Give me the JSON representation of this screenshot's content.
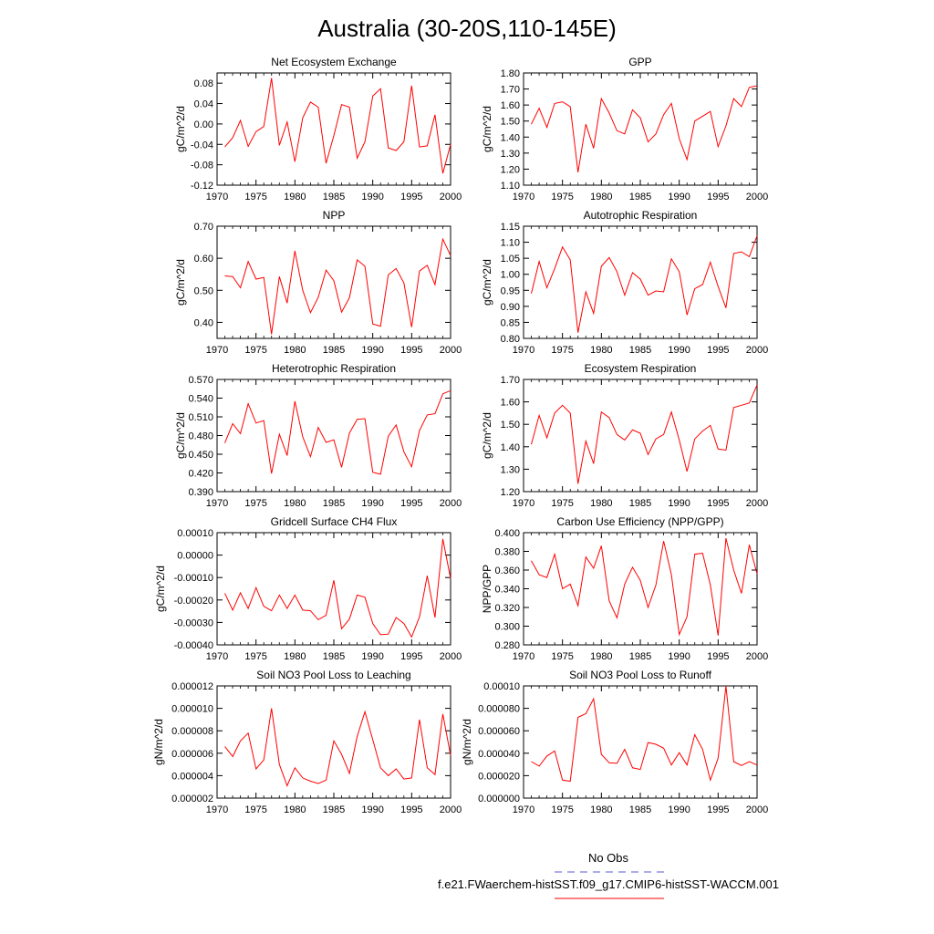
{
  "figure": {
    "title": "Australia (30-20S,110-145E)",
    "legend": [
      {
        "label": "No Obs",
        "color": "#5a5ad6",
        "dash": true
      },
      {
        "label": "f.e21.FWaerchem-histSST.f09_g17.CMIP6-histSST-WACCM.001",
        "color": "#ff0000",
        "dash": false
      }
    ]
  },
  "chart_data": [
    {
      "type": "line",
      "title": "Net Ecosystem Exchange",
      "ylabel": "gC/m^2/d",
      "xlim": [
        1970,
        2000
      ],
      "ylim": [
        -0.12,
        0.1
      ],
      "xticks": [
        "1970",
        "1975",
        "1980",
        "1985",
        "1990",
        "1995",
        "2000"
      ],
      "yticks": [
        "0.08",
        "0.04",
        "0.00",
        "-0.04",
        "-0.08",
        "-0.12"
      ],
      "ytick_values": [
        0.08,
        0.04,
        0.0,
        -0.04,
        -0.08,
        -0.12
      ],
      "x": [
        1971,
        1972,
        1973,
        1974,
        1975,
        1976,
        1977,
        1978,
        1979,
        1980,
        1981,
        1982,
        1983,
        1984,
        1985,
        1986,
        1987,
        1988,
        1989,
        1990,
        1991,
        1992,
        1993,
        1994,
        1995,
        1996,
        1997,
        1998,
        1999,
        2000
      ],
      "y": [
        -0.045,
        -0.027,
        0.007,
        -0.044,
        -0.015,
        -0.005,
        0.09,
        -0.042,
        0.004,
        -0.074,
        0.012,
        0.043,
        0.033,
        -0.077,
        -0.023,
        0.038,
        0.033,
        -0.067,
        -0.035,
        0.055,
        0.069,
        -0.047,
        -0.052,
        -0.035,
        0.075,
        -0.045,
        -0.043,
        0.018,
        -0.097,
        -0.04
      ]
    },
    {
      "type": "line",
      "title": "GPP",
      "ylabel": "gC/m^2/d",
      "xlim": [
        1970,
        2000
      ],
      "ylim": [
        1.1,
        1.8
      ],
      "xticks": [
        "1970",
        "1975",
        "1980",
        "1985",
        "1990",
        "1995",
        "2000"
      ],
      "yticks": [
        "1.80",
        "1.70",
        "1.60",
        "1.50",
        "1.40",
        "1.30",
        "1.20",
        "1.10"
      ],
      "ytick_values": [
        1.8,
        1.7,
        1.6,
        1.5,
        1.4,
        1.3,
        1.2,
        1.1
      ],
      "x": [
        1971,
        1972,
        1973,
        1974,
        1975,
        1976,
        1977,
        1978,
        1979,
        1980,
        1981,
        1982,
        1983,
        1984,
        1985,
        1986,
        1987,
        1988,
        1989,
        1990,
        1991,
        1992,
        1993,
        1994,
        1995,
        1996,
        1997,
        1998,
        1999,
        2000
      ],
      "y": [
        1.48,
        1.58,
        1.46,
        1.61,
        1.62,
        1.59,
        1.18,
        1.48,
        1.33,
        1.64,
        1.55,
        1.44,
        1.42,
        1.57,
        1.52,
        1.37,
        1.42,
        1.54,
        1.61,
        1.39,
        1.26,
        1.5,
        1.53,
        1.56,
        1.34,
        1.47,
        1.64,
        1.59,
        1.71,
        1.72
      ]
    },
    {
      "type": "line",
      "title": "NPP",
      "ylabel": "gC/m^2/d",
      "xlim": [
        1970,
        2000
      ],
      "ylim": [
        0.35,
        0.7
      ],
      "xticks": [
        "1970",
        "1975",
        "1980",
        "1985",
        "1990",
        "1995",
        "2000"
      ],
      "yticks": [
        "0.70",
        "0.60",
        "0.50",
        "0.40"
      ],
      "ytick_values": [
        0.7,
        0.6,
        0.5,
        0.4
      ],
      "x": [
        1971,
        1972,
        1973,
        1974,
        1975,
        1976,
        1977,
        1978,
        1979,
        1980,
        1981,
        1982,
        1983,
        1984,
        1985,
        1986,
        1987,
        1988,
        1989,
        1990,
        1991,
        1992,
        1993,
        1994,
        1995,
        1996,
        1997,
        1998,
        1999,
        2000
      ],
      "y": [
        0.545,
        0.543,
        0.508,
        0.59,
        0.535,
        0.54,
        0.363,
        0.543,
        0.46,
        0.623,
        0.5,
        0.43,
        0.478,
        0.563,
        0.53,
        0.432,
        0.477,
        0.595,
        0.575,
        0.395,
        0.388,
        0.548,
        0.568,
        0.523,
        0.385,
        0.56,
        0.578,
        0.518,
        0.66,
        0.608
      ]
    },
    {
      "type": "line",
      "title": "Autotrophic Respiration",
      "ylabel": "gC/m^2/d",
      "xlim": [
        1970,
        2000
      ],
      "ylim": [
        0.8,
        1.15
      ],
      "xticks": [
        "1970",
        "1975",
        "1980",
        "1985",
        "1990",
        "1995",
        "2000"
      ],
      "yticks": [
        "1.15",
        "1.10",
        "1.05",
        "1.00",
        "0.95",
        "0.90",
        "0.85",
        "0.80"
      ],
      "ytick_values": [
        1.15,
        1.1,
        1.05,
        1.0,
        0.95,
        0.9,
        0.85,
        0.8
      ],
      "x": [
        1971,
        1972,
        1973,
        1974,
        1975,
        1976,
        1977,
        1978,
        1979,
        1980,
        1981,
        1982,
        1983,
        1984,
        1985,
        1986,
        1987,
        1988,
        1989,
        1990,
        1991,
        1992,
        1993,
        1994,
        1995,
        1996,
        1997,
        1998,
        1999,
        2000
      ],
      "y": [
        0.94,
        1.04,
        0.958,
        1.018,
        1.085,
        1.045,
        0.818,
        0.945,
        0.878,
        1.025,
        1.052,
        1.008,
        0.935,
        1.005,
        0.985,
        0.935,
        0.948,
        0.945,
        1.048,
        1.008,
        0.873,
        0.955,
        0.968,
        1.038,
        0.962,
        0.895,
        1.065,
        1.07,
        1.055,
        1.12
      ]
    },
    {
      "type": "line",
      "title": "Heterotrophic Respiration",
      "ylabel": "gC/m^2/d",
      "xlim": [
        1970,
        2000
      ],
      "ylim": [
        0.39,
        0.57
      ],
      "xticks": [
        "1970",
        "1975",
        "1980",
        "1985",
        "1990",
        "1995",
        "2000"
      ],
      "yticks": [
        "0.570",
        "0.540",
        "0.510",
        "0.480",
        "0.450",
        "0.420",
        "0.390"
      ],
      "ytick_values": [
        0.57,
        0.54,
        0.51,
        0.48,
        0.45,
        0.42,
        0.39
      ],
      "x": [
        1971,
        1972,
        1973,
        1974,
        1975,
        1976,
        1977,
        1978,
        1979,
        1980,
        1981,
        1982,
        1983,
        1984,
        1985,
        1986,
        1987,
        1988,
        1989,
        1990,
        1991,
        1992,
        1993,
        1994,
        1995,
        1996,
        1997,
        1998,
        1999,
        2000
      ],
      "y": [
        0.468,
        0.499,
        0.483,
        0.531,
        0.5,
        0.504,
        0.419,
        0.482,
        0.448,
        0.535,
        0.478,
        0.446,
        0.493,
        0.469,
        0.473,
        0.429,
        0.484,
        0.506,
        0.507,
        0.421,
        0.418,
        0.479,
        0.497,
        0.454,
        0.43,
        0.488,
        0.513,
        0.515,
        0.547,
        0.552
      ]
    },
    {
      "type": "line",
      "title": "Ecosystem Respiration",
      "ylabel": "gC/m^2/d",
      "xlim": [
        1970,
        2000
      ],
      "ylim": [
        1.2,
        1.7
      ],
      "xticks": [
        "1970",
        "1975",
        "1980",
        "1985",
        "1990",
        "1995",
        "2000"
      ],
      "yticks": [
        "1.70",
        "1.60",
        "1.50",
        "1.40",
        "1.30",
        "1.20"
      ],
      "ytick_values": [
        1.7,
        1.6,
        1.5,
        1.4,
        1.3,
        1.2
      ],
      "x": [
        1971,
        1972,
        1973,
        1974,
        1975,
        1976,
        1977,
        1978,
        1979,
        1980,
        1981,
        1982,
        1983,
        1984,
        1985,
        1986,
        1987,
        1988,
        1989,
        1990,
        1991,
        1992,
        1993,
        1994,
        1995,
        1996,
        1997,
        1998,
        1999,
        2000
      ],
      "y": [
        1.41,
        1.54,
        1.44,
        1.55,
        1.585,
        1.55,
        1.235,
        1.425,
        1.325,
        1.555,
        1.53,
        1.455,
        1.43,
        1.475,
        1.46,
        1.365,
        1.435,
        1.455,
        1.555,
        1.43,
        1.29,
        1.435,
        1.47,
        1.495,
        1.39,
        1.385,
        1.575,
        1.585,
        1.595,
        1.675
      ]
    },
    {
      "type": "line",
      "title": "Gridcell Surface CH4 Flux",
      "ylabel": "gC/m^2/d",
      "xlim": [
        1970,
        2000
      ],
      "ylim": [
        -0.0004,
        0.0001
      ],
      "xticks": [
        "1970",
        "1975",
        "1980",
        "1985",
        "1990",
        "1995",
        "2000"
      ],
      "yticks": [
        "0.00010",
        "0.00000",
        "-0.00010",
        "-0.00020",
        "-0.00030",
        "-0.00040"
      ],
      "ytick_values": [
        0.0001,
        0.0,
        -0.0001,
        -0.0002,
        -0.0003,
        -0.0004
      ],
      "x": [
        1971,
        1972,
        1973,
        1974,
        1975,
        1976,
        1977,
        1978,
        1979,
        1980,
        1981,
        1982,
        1983,
        1984,
        1985,
        1986,
        1987,
        1988,
        1989,
        1990,
        1991,
        1992,
        1993,
        1994,
        1995,
        1996,
        1997,
        1998,
        1999,
        2000
      ],
      "y": [
        -0.00017,
        -0.000245,
        -0.000168,
        -0.000238,
        -0.000145,
        -0.000228,
        -0.000248,
        -0.000178,
        -0.000238,
        -0.000178,
        -0.000245,
        -0.000248,
        -0.000288,
        -0.000268,
        -0.000112,
        -0.000328,
        -0.000285,
        -0.000178,
        -0.000188,
        -0.000305,
        -0.000355,
        -0.000352,
        -0.000278,
        -0.000305,
        -0.000365,
        -0.000275,
        -9.2e-05,
        -0.000278,
        7.2e-05,
        -0.000105
      ]
    },
    {
      "type": "line",
      "title": "Carbon Use Efficiency (NPP/GPP)",
      "ylabel": "NPP/GPP",
      "xlim": [
        1970,
        2000
      ],
      "ylim": [
        0.28,
        0.4
      ],
      "xticks": [
        "1970",
        "1975",
        "1980",
        "1985",
        "1990",
        "1995",
        "2000"
      ],
      "yticks": [
        "0.400",
        "0.380",
        "0.360",
        "0.340",
        "0.320",
        "0.300",
        "0.280"
      ],
      "ytick_values": [
        0.4,
        0.38,
        0.36,
        0.34,
        0.32,
        0.3,
        0.28
      ],
      "x": [
        1971,
        1972,
        1973,
        1974,
        1975,
        1976,
        1977,
        1978,
        1979,
        1980,
        1981,
        1982,
        1983,
        1984,
        1985,
        1986,
        1987,
        1988,
        1989,
        1990,
        1991,
        1992,
        1993,
        1994,
        1995,
        1996,
        1997,
        1998,
        1999,
        2000
      ],
      "y": [
        0.37,
        0.355,
        0.352,
        0.377,
        0.34,
        0.345,
        0.322,
        0.374,
        0.362,
        0.386,
        0.327,
        0.309,
        0.345,
        0.363,
        0.349,
        0.32,
        0.344,
        0.391,
        0.355,
        0.291,
        0.31,
        0.377,
        0.378,
        0.344,
        0.29,
        0.394,
        0.36,
        0.335,
        0.387,
        0.356
      ]
    },
    {
      "type": "line",
      "title": "Soil NO3 Pool Loss to Leaching",
      "ylabel": "gN/m^2/d",
      "xlim": [
        1970,
        2000
      ],
      "ylim": [
        2e-06,
        1.2e-05
      ],
      "xticks": [
        "1970",
        "1975",
        "1980",
        "1985",
        "1990",
        "1995",
        "2000"
      ],
      "yticks": [
        "0.000012",
        "0.000010",
        "0.000008",
        "0.000006",
        "0.000004",
        "0.000002"
      ],
      "ytick_values": [
        1.2e-05,
        1e-05,
        8e-06,
        6e-06,
        4e-06,
        2e-06
      ],
      "x": [
        1971,
        1972,
        1973,
        1974,
        1975,
        1976,
        1977,
        1978,
        1979,
        1980,
        1981,
        1982,
        1983,
        1984,
        1985,
        1986,
        1987,
        1988,
        1989,
        1990,
        1991,
        1992,
        1993,
        1994,
        1995,
        1996,
        1997,
        1998,
        1999,
        2000
      ],
      "y": [
        6.6e-06,
        5.7e-06,
        7.1e-06,
        7.8e-06,
        4.6e-06,
        5.4e-06,
        1e-05,
        5e-06,
        3.1e-06,
        4.7e-06,
        3.8e-06,
        3.5e-06,
        3.3e-06,
        3.6e-06,
        7.1e-06,
        5.9e-06,
        4.2e-06,
        7.5e-06,
        9.7e-06,
        7.2e-06,
        4.7e-06,
        4e-06,
        4.6e-06,
        3.7e-06,
        3.8e-06,
        9e-06,
        4.7e-06,
        4.1e-06,
        9.5e-06,
        5.8e-06
      ]
    },
    {
      "type": "line",
      "title": "Soil NO3 Pool Loss to Runoff",
      "ylabel": "gN/m^2/d",
      "xlim": [
        1970,
        2000
      ],
      "ylim": [
        0.0,
        0.0001
      ],
      "xticks": [
        "1970",
        "1975",
        "1980",
        "1985",
        "1990",
        "1995",
        "2000"
      ],
      "yticks": [
        "0.00010",
        "0.000080",
        "0.000060",
        "0.000040",
        "0.000020",
        "0.000000"
      ],
      "ytick_values": [
        0.0001,
        8e-05,
        6e-05,
        4e-05,
        2e-05,
        0.0
      ],
      "x": [
        1971,
        1972,
        1973,
        1974,
        1975,
        1976,
        1977,
        1978,
        1979,
        1980,
        1981,
        1982,
        1983,
        1984,
        1985,
        1986,
        1987,
        1988,
        1989,
        1990,
        1991,
        1992,
        1993,
        1994,
        1995,
        1996,
        1997,
        1998,
        1999,
        2000
      ],
      "y": [
        3.25e-05,
        2.85e-05,
        3.75e-05,
        4.2e-05,
        1.6e-05,
        1.5e-05,
        7.2e-05,
        7.52e-05,
        8.85e-05,
        3.9e-05,
        3.15e-05,
        3.1e-05,
        4.35e-05,
        2.7e-05,
        2.55e-05,
        4.95e-05,
        4.8e-05,
        4.45e-05,
        2.95e-05,
        4.05e-05,
        2.95e-05,
        5.65e-05,
        4.35e-05,
        1.6e-05,
        3.55e-05,
        0.0001,
        3.25e-05,
        2.9e-05,
        3.25e-05,
        2.95e-05
      ]
    }
  ]
}
